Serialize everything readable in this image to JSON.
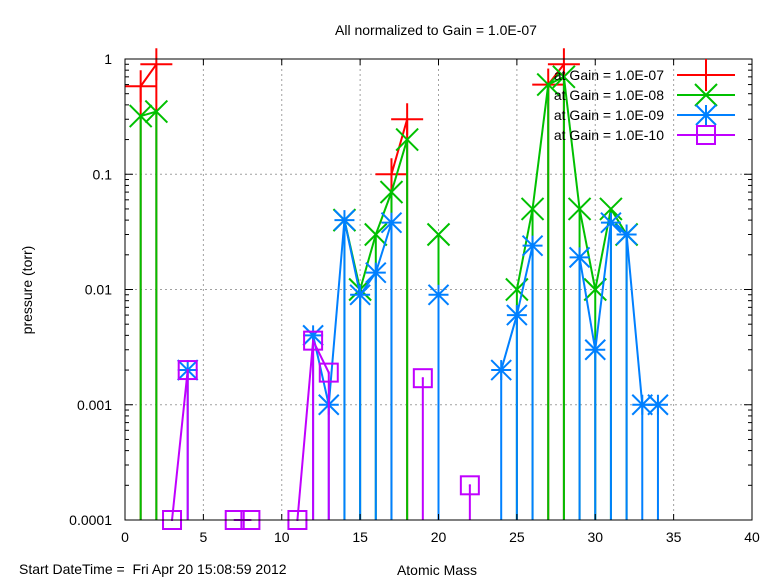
{
  "chart_data": {
    "type": "line",
    "title": "All normalized to Gain = 1.0E-07",
    "xlabel": "Atomic Mass",
    "ylabel": "pressure (torr)",
    "xlim": [
      0,
      40
    ],
    "ylim": [
      0.0001,
      1
    ],
    "yscale": "log",
    "grid": true,
    "legend_position": "top-right",
    "x_ticks": [
      "0",
      "5",
      "10",
      "15",
      "20",
      "25",
      "30",
      "35",
      "40"
    ],
    "x_tick_values": [
      0,
      5,
      10,
      15,
      20,
      25,
      30,
      35,
      40
    ],
    "y_ticks": [
      "1",
      "0.1",
      "0.01",
      "0.001",
      "0.0001"
    ],
    "y_tick_values": [
      1,
      0.1,
      0.01,
      0.001,
      0.0001
    ],
    "footer": "Start DateTime =  Fri Apr 20 15:08:59 2012",
    "series": [
      {
        "name": "at Gain = 1.0E-07",
        "color": "#ff0000",
        "marker": "plus",
        "points": [
          [
            1,
            0.58
          ],
          [
            2,
            0.9
          ],
          [
            17,
            0.1
          ],
          [
            18,
            0.3
          ],
          [
            27,
            0.6
          ],
          [
            28,
            0.9
          ]
        ]
      },
      {
        "name": "at Gain = 1.0E-08",
        "color": "#00c000",
        "marker": "cross",
        "points": [
          [
            1,
            0.32
          ],
          [
            2,
            0.35
          ],
          [
            14,
            0.04
          ],
          [
            15,
            0.01
          ],
          [
            16,
            0.03
          ],
          [
            17,
            0.07
          ],
          [
            18,
            0.2
          ],
          [
            20,
            0.03
          ],
          [
            25,
            0.01
          ],
          [
            26,
            0.05
          ],
          [
            27,
            0.6
          ],
          [
            28,
            0.7
          ],
          [
            29,
            0.05
          ],
          [
            30,
            0.01
          ],
          [
            31,
            0.05
          ],
          [
            32,
            0.03
          ]
        ]
      },
      {
        "name": "at Gain = 1.0E-09",
        "color": "#0080ff",
        "marker": "star",
        "points": [
          [
            4,
            0.002
          ],
          [
            12,
            0.004
          ],
          [
            13,
            0.001
          ],
          [
            14,
            0.04
          ],
          [
            15,
            0.009
          ],
          [
            16,
            0.014
          ],
          [
            17,
            0.038
          ],
          [
            20,
            0.009
          ],
          [
            24,
            0.002
          ],
          [
            25,
            0.006
          ],
          [
            26,
            0.024
          ],
          [
            29,
            0.019
          ],
          [
            30,
            0.003
          ],
          [
            31,
            0.038
          ],
          [
            32,
            0.03
          ],
          [
            33,
            0.001
          ],
          [
            34,
            0.001
          ]
        ]
      },
      {
        "name": "at Gain = 1.0E-10",
        "color": "#c000ff",
        "marker": "square",
        "points": [
          [
            3,
            0.0001
          ],
          [
            4,
            0.002
          ],
          [
            7,
            0.0001
          ],
          [
            8,
            0.0001
          ],
          [
            11,
            0.0001
          ],
          [
            12,
            0.0036
          ],
          [
            13,
            0.0019
          ],
          [
            19,
            0.0017
          ],
          [
            22,
            0.0002
          ]
        ]
      }
    ]
  }
}
